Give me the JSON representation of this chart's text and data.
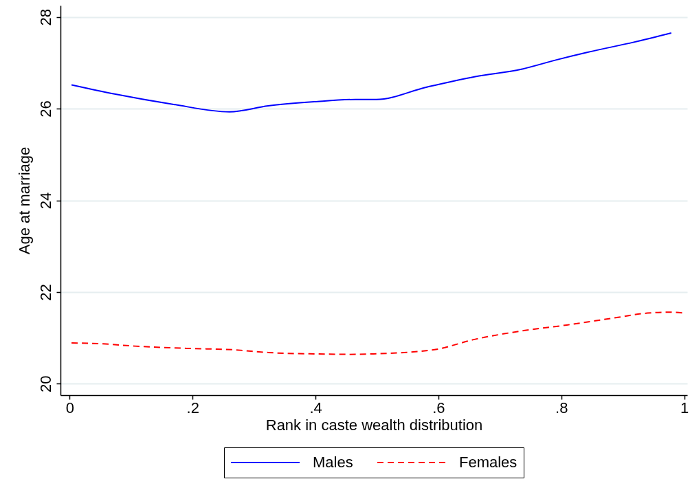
{
  "chart_data": {
    "type": "line",
    "xlabel": "Rank in caste wealth distribution",
    "ylabel": "Age at marriage",
    "series": [
      {
        "name": "Males",
        "color": "#0000ff",
        "line_style": "solid",
        "x": [
          0.003,
          0.073,
          0.166,
          0.26,
          0.323,
          0.398,
          0.465,
          0.499,
          0.581,
          0.66,
          0.735,
          0.791,
          0.843,
          0.918,
          0.979
        ],
        "values": [
          26.52,
          26.32,
          26.1,
          25.93,
          26.06,
          26.15,
          26.2,
          26.2,
          26.47,
          26.7,
          26.86,
          27.06,
          27.23,
          27.45,
          27.65
        ]
      },
      {
        "name": "Females",
        "color": "#ff0000",
        "line_style": "dashed",
        "x": [
          0.003,
          0.054,
          0.106,
          0.192,
          0.267,
          0.323,
          0.398,
          0.454,
          0.492,
          0.592,
          0.66,
          0.735,
          0.809,
          0.884,
          0.94,
          0.978,
          1.0
        ],
        "values": [
          20.89,
          20.87,
          20.82,
          20.77,
          20.74,
          20.68,
          20.65,
          20.64,
          20.65,
          20.74,
          20.97,
          21.15,
          21.28,
          21.43,
          21.54,
          21.56,
          21.54
        ]
      }
    ],
    "xlim": [
      -0.015,
      1.005
    ],
    "ylim": [
      19.75,
      28.25
    ],
    "xticks": [
      0,
      {
        "value": 0.2,
        "label": ".2"
      },
      {
        "value": 0.4,
        "label": ".4"
      },
      {
        "value": 0.6,
        "label": ".6"
      },
      {
        "value": 0.8,
        "label": ".8"
      },
      1
    ],
    "yticks": [
      20,
      22,
      24,
      26,
      28
    ],
    "grid": "y",
    "legend": "bottom"
  }
}
